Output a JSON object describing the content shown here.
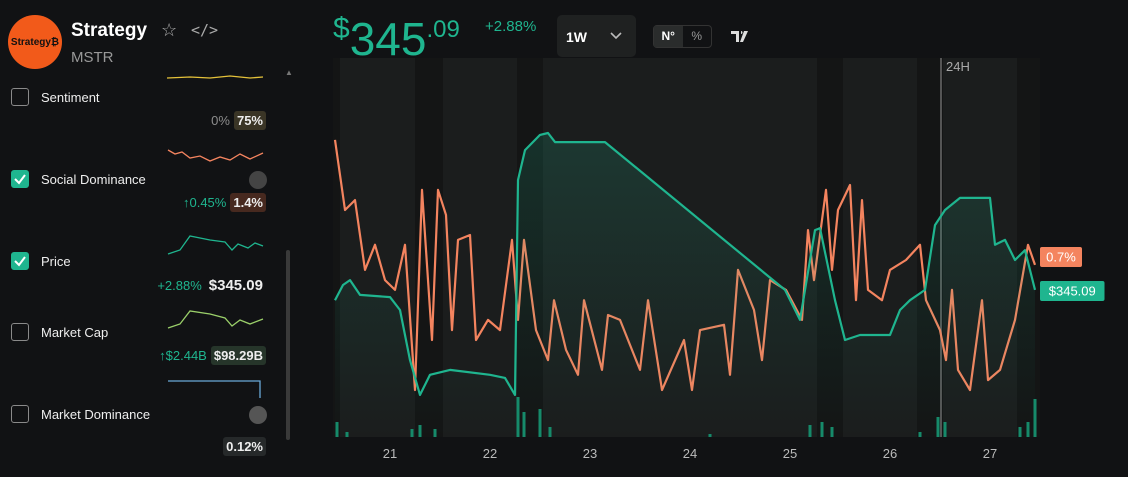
{
  "header": {
    "logo_text": "Strategy₿",
    "name": "Strategy",
    "ticker": "MSTR"
  },
  "metrics": [
    {
      "label": "Sentiment",
      "checked": false,
      "change": "0%",
      "value": "75%",
      "badge_color": "#3a3526"
    },
    {
      "label": "Social Dominance",
      "checked": true,
      "change": "↑0.45%",
      "value": "1.4%",
      "badge_color": "#47291f"
    },
    {
      "label": "Price",
      "checked": true,
      "change": "+2.88%",
      "value": "$345.09",
      "badge_color": "#111214"
    },
    {
      "label": "Market Cap",
      "checked": false,
      "change": "↑$2.44B",
      "value": "$98.29B",
      "badge_color": "#26352a"
    },
    {
      "label": "Market Dominance",
      "checked": false,
      "value": "0.12%",
      "badge_color": "#26292a"
    }
  ],
  "price": {
    "symbol": "$",
    "integer": "345",
    "decimals": ".09",
    "change": "+2.88%"
  },
  "controls": {
    "timeframe": "1W",
    "toggle": [
      "N°",
      "%"
    ]
  },
  "chart_data": {
    "type": "line",
    "xlim": [
      20.43,
      27.5
    ],
    "xticks": [
      21,
      22,
      23,
      24,
      25,
      26,
      27
    ],
    "ylim": [
      0,
      100
    ],
    "marker_label": "24H",
    "series": [
      {
        "color": "#f4845f",
        "end_label": "0.7%",
        "x": [
          20.45,
          20.55,
          20.65,
          20.75,
          20.85,
          20.95,
          21.05,
          21.15,
          21.25,
          21.32,
          21.42,
          21.48,
          21.56,
          21.62,
          21.68,
          21.8,
          21.86,
          21.98,
          22.1,
          22.22,
          22.28,
          22.34,
          22.46,
          22.58,
          22.64,
          22.76,
          22.88,
          22.94,
          23.12,
          23.18,
          23.3,
          23.5,
          23.58,
          23.72,
          23.94,
          24.02,
          24.1,
          24.34,
          24.4,
          24.48,
          24.64,
          24.72,
          24.8,
          24.96,
          25.12,
          25.18,
          25.24,
          25.36,
          25.42,
          25.48,
          25.6,
          25.66,
          25.72,
          25.78,
          25.92,
          26.0,
          26.16,
          26.3,
          26.36,
          26.5,
          26.56,
          26.62,
          26.68,
          26.8,
          26.92,
          26.98,
          27.1,
          27.25,
          27.38,
          27.45
        ],
        "values": [
          78.4,
          59.9,
          62.5,
          44.1,
          50.7,
          41.4,
          38.8,
          50.7,
          12.4,
          65.2,
          25.6,
          65.2,
          58.6,
          28.2,
          52.0,
          53.3,
          25.6,
          30.9,
          28.2,
          52.0,
          30.9,
          52.0,
          28.2,
          20.3,
          36.1,
          23.0,
          16.4,
          36.1,
          17.7,
          32.2,
          30.9,
          17.7,
          36.1,
          12.4,
          25.6,
          12.4,
          28.2,
          29.6,
          16.4,
          44.1,
          33.5,
          20.3,
          41.4,
          38.8,
          30.9,
          54.6,
          41.4,
          65.2,
          44.1,
          59.9,
          66.5,
          36.1,
          62.5,
          38.8,
          36.1,
          44.1,
          46.7,
          50.7,
          36.1,
          28.2,
          20.3,
          38.8,
          17.7,
          12.4,
          36.1,
          15.0,
          17.7,
          30.9,
          50.7,
          45.4
        ]
      },
      {
        "color": "#1fb58f",
        "end_label": "$345.09",
        "fill": true,
        "x": [
          20.45,
          20.53,
          20.6,
          20.7,
          21.0,
          21.1,
          21.2,
          21.3,
          21.4,
          21.6,
          22.0,
          22.15,
          22.25,
          22.28,
          22.35,
          22.5,
          22.58,
          22.65,
          23.15,
          24.95,
          25.1,
          25.25,
          25.3,
          25.45,
          25.55,
          25.7,
          26.0,
          26.1,
          26.2,
          26.35,
          26.45,
          26.55,
          26.7,
          27.0,
          27.05,
          27.15,
          27.25,
          27.35,
          27.45
        ],
        "values": [
          36.1,
          40.1,
          41.4,
          37.5,
          36.9,
          33.5,
          20.3,
          11.1,
          16.4,
          17.7,
          16.4,
          15.6,
          11.1,
          67.8,
          75.7,
          79.7,
          80.2,
          77.8,
          77.8,
          38.8,
          30.9,
          54.6,
          55.1,
          36.1,
          25.6,
          26.9,
          26.9,
          33.5,
          36.1,
          38.8,
          55.9,
          59.9,
          63.1,
          63.1,
          50.7,
          52.0,
          46.7,
          49.3,
          38.8
        ]
      }
    ],
    "volume": {
      "color": "#168a6a",
      "ylim": [
        0,
        100
      ],
      "x": [
        20.47,
        20.57,
        21.22,
        21.3,
        21.45,
        22.28,
        22.34,
        22.5,
        22.6,
        24.2,
        25.2,
        25.32,
        25.42,
        26.3,
        26.48,
        26.55,
        27.3,
        27.38,
        27.45
      ],
      "values": [
        37.5,
        12.5,
        20,
        30,
        20,
        100,
        62.5,
        70,
        25,
        7.5,
        30,
        37.5,
        25,
        12.5,
        50,
        37.5,
        25,
        37.5,
        95
      ]
    }
  }
}
